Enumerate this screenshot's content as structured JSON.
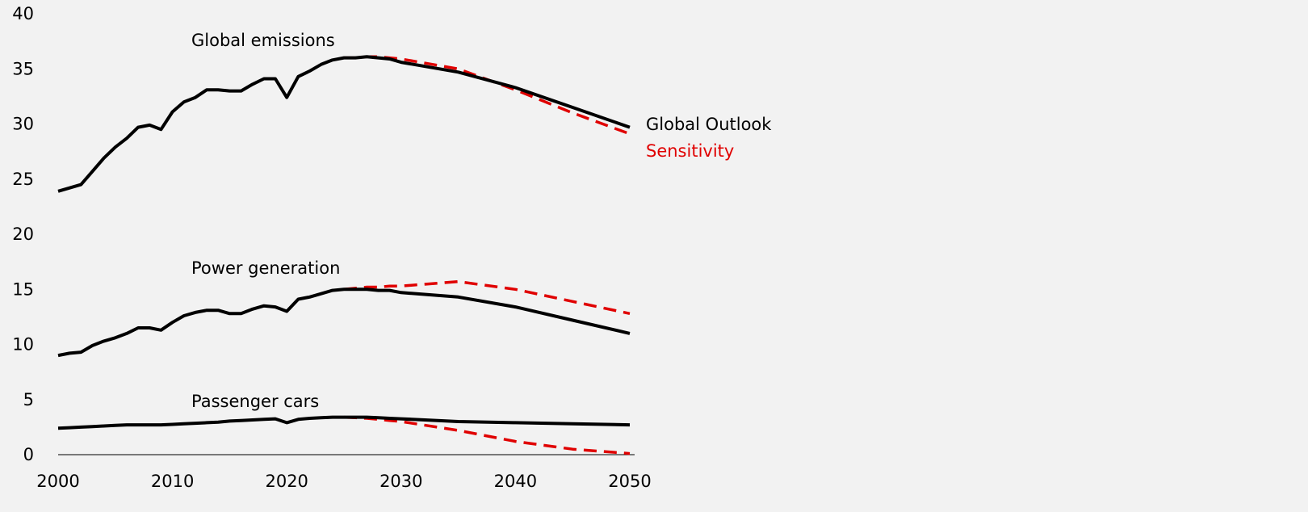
{
  "chart_data": {
    "type": "line",
    "title": "",
    "xlabel": "",
    "ylabel": "",
    "xlim": [
      2000,
      2050
    ],
    "ylim": [
      0,
      40
    ],
    "x_ticks": [
      "2000",
      "2010",
      "2020",
      "2030",
      "2040",
      "2050"
    ],
    "y_ticks": [
      "0",
      "5",
      "10",
      "15",
      "20",
      "25",
      "30",
      "35",
      "40"
    ],
    "grid": false,
    "colors": {
      "outlook": "#000000",
      "sensitivity": "#e00000"
    },
    "annotations": [
      "Global emissions",
      "Power generation",
      "Passenger cars"
    ],
    "legend": [
      {
        "label": "Global Outlook",
        "color": "#000000"
      },
      {
        "label": "Sensitivity",
        "color": "#e00000"
      }
    ],
    "series": [
      {
        "name": "Global Outlook",
        "group": "Global emissions",
        "style": "solid",
        "x": [
          2000,
          2001,
          2002,
          2003,
          2004,
          2005,
          2006,
          2007,
          2008,
          2009,
          2010,
          2011,
          2012,
          2013,
          2014,
          2015,
          2016,
          2017,
          2018,
          2019,
          2020,
          2021,
          2022,
          2023,
          2024,
          2025,
          2026,
          2027,
          2028,
          2029,
          2030,
          2035,
          2040,
          2045,
          2050
        ],
        "y": [
          23.9,
          24.2,
          24.5,
          25.7,
          26.9,
          27.9,
          28.7,
          29.7,
          29.9,
          29.5,
          31.1,
          32.0,
          32.4,
          33.1,
          33.1,
          33.0,
          33.0,
          33.6,
          34.1,
          34.1,
          32.4,
          34.3,
          34.8,
          35.4,
          35.8,
          36.0,
          36.0,
          36.1,
          36.0,
          35.9,
          35.6,
          34.7,
          33.3,
          31.5,
          29.7
        ]
      },
      {
        "name": "Sensitivity",
        "group": "Global emissions",
        "style": "dashed",
        "x": [
          2025,
          2026,
          2027,
          2028,
          2029,
          2030,
          2035,
          2040,
          2045,
          2050
        ],
        "y": [
          36.0,
          36.0,
          36.1,
          36.1,
          36.0,
          35.9,
          35.0,
          33.1,
          31.0,
          29.1
        ]
      },
      {
        "name": "Global Outlook",
        "group": "Power generation",
        "style": "solid",
        "x": [
          2000,
          2001,
          2002,
          2003,
          2004,
          2005,
          2006,
          2007,
          2008,
          2009,
          2010,
          2011,
          2012,
          2013,
          2014,
          2015,
          2016,
          2017,
          2018,
          2019,
          2020,
          2021,
          2022,
          2023,
          2024,
          2025,
          2026,
          2027,
          2028,
          2029,
          2030,
          2035,
          2040,
          2045,
          2050
        ],
        "y": [
          9.0,
          9.2,
          9.3,
          9.9,
          10.3,
          10.6,
          11.0,
          11.5,
          11.5,
          11.3,
          12.0,
          12.6,
          12.9,
          13.1,
          13.1,
          12.8,
          12.8,
          13.2,
          13.5,
          13.4,
          13.0,
          14.1,
          14.3,
          14.6,
          14.9,
          15.0,
          15.0,
          15.0,
          14.9,
          14.9,
          14.7,
          14.3,
          13.4,
          12.2,
          11.0
        ]
      },
      {
        "name": "Sensitivity",
        "group": "Power generation",
        "style": "dashed",
        "x": [
          2025,
          2026,
          2027,
          2028,
          2029,
          2030,
          2035,
          2040,
          2045,
          2050
        ],
        "y": [
          15.0,
          15.1,
          15.2,
          15.2,
          15.3,
          15.3,
          15.7,
          15.0,
          13.9,
          12.8
        ]
      },
      {
        "name": "Global Outlook",
        "group": "Passenger cars",
        "style": "solid",
        "x": [
          2000,
          2001,
          2002,
          2003,
          2004,
          2005,
          2006,
          2007,
          2008,
          2009,
          2010,
          2011,
          2012,
          2013,
          2014,
          2015,
          2016,
          2017,
          2018,
          2019,
          2020,
          2021,
          2022,
          2023,
          2024,
          2025,
          2026,
          2027,
          2028,
          2029,
          2030,
          2035,
          2040,
          2045,
          2050
        ],
        "y": [
          2.4,
          2.45,
          2.5,
          2.55,
          2.6,
          2.65,
          2.7,
          2.7,
          2.7,
          2.7,
          2.75,
          2.8,
          2.85,
          2.9,
          2.95,
          3.05,
          3.1,
          3.15,
          3.2,
          3.25,
          2.9,
          3.2,
          3.3,
          3.35,
          3.4,
          3.4,
          3.4,
          3.4,
          3.35,
          3.3,
          3.25,
          3.0,
          2.9,
          2.8,
          2.7
        ]
      },
      {
        "name": "Sensitivity",
        "group": "Passenger cars",
        "style": "dashed",
        "x": [
          2025,
          2026,
          2027,
          2028,
          2029,
          2030,
          2035,
          2040,
          2045,
          2050
        ],
        "y": [
          3.4,
          3.35,
          3.3,
          3.2,
          3.1,
          3.0,
          2.2,
          1.2,
          0.5,
          0.1
        ]
      }
    ]
  }
}
